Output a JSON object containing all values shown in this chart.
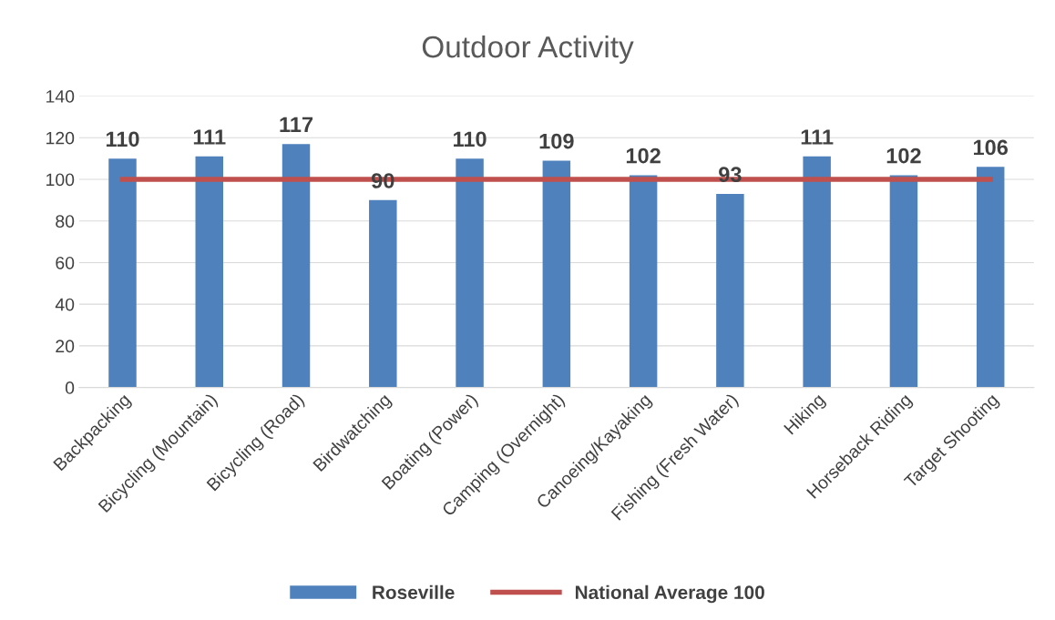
{
  "chart_data": {
    "type": "bar",
    "title": "Outdoor Activity",
    "categories": [
      "Backpacking",
      "Bicycling (Mountain)",
      "Bicycling (Road)",
      "Birdwatching",
      "Boating (Power)",
      "Camping (Overnight)",
      "Canoeing/Kayaking",
      "Fishing (Fresh Water)",
      "Hiking",
      "Horseback Riding",
      "Target Shooting"
    ],
    "series": [
      {
        "name": "Roseville",
        "color": "#4f81bd",
        "values": [
          110,
          111,
          117,
          90,
          110,
          109,
          102,
          93,
          111,
          102,
          106
        ],
        "value_labels": [
          "110",
          "111",
          "117",
          "90",
          "110",
          "109",
          "102",
          "93",
          "111",
          "102",
          "106"
        ]
      },
      {
        "name": "National Average 100",
        "type": "line",
        "color": "#c0504d",
        "values": [
          100,
          100,
          100,
          100,
          100,
          100,
          100,
          100,
          100,
          100,
          100
        ]
      }
    ],
    "ylim": [
      0,
      140
    ],
    "yticks": [
      0,
      20,
      40,
      60,
      80,
      100,
      120,
      140
    ],
    "grid": "y",
    "legend": "bottom",
    "marker": "none",
    "line_style": "solid"
  }
}
